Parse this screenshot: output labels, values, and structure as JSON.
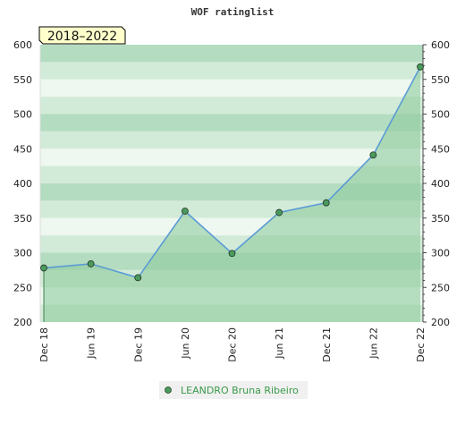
{
  "chart_data": {
    "type": "area",
    "title": "WOF ratinglist",
    "period_label": "2018–2022",
    "xlabel": "",
    "ylabel": "",
    "categories": [
      "Dec 18",
      "Jun 19",
      "Dec 19",
      "Jun 20",
      "Dec 20",
      "Jun 21",
      "Dec 21",
      "Jun 22",
      "Dec 22"
    ],
    "series": [
      {
        "name": "LEANDRO Bruna Ribeiro",
        "values": [
          278,
          284,
          264,
          360,
          299,
          358,
          372,
          441,
          568
        ]
      }
    ],
    "ylim": [
      200,
      600
    ],
    "yticks": [
      200,
      250,
      300,
      350,
      400,
      450,
      500,
      550,
      600
    ],
    "right_axis": true,
    "grid": true,
    "legend_position": "bottom-center",
    "colors": {
      "line": "#5b9bd5",
      "fill": "#8fcc9f",
      "point": "#4a9a5e",
      "legend_text": "#3a9a4a",
      "band_dark": "#b4dcc0",
      "band_light": "#eef7f0",
      "badge_bg": "#ffffcc"
    }
  }
}
